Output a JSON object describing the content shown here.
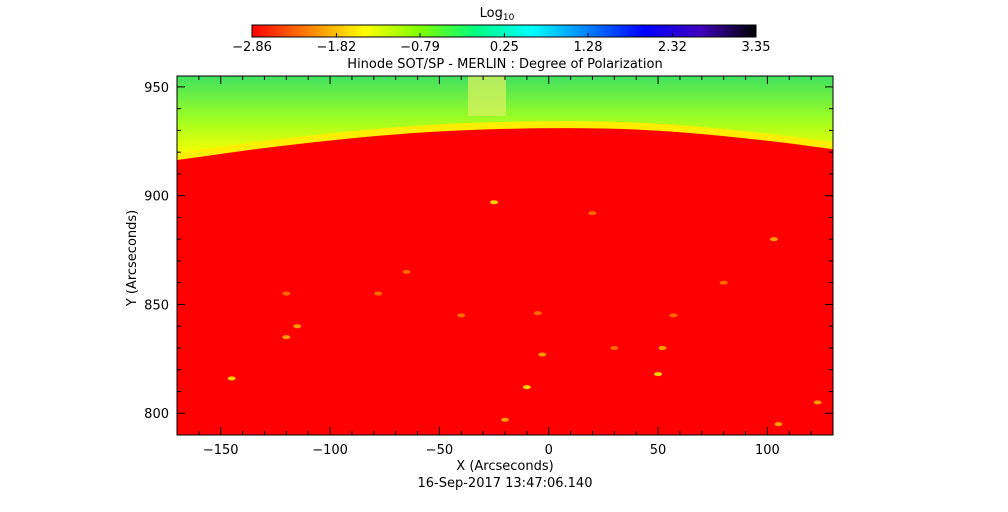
{
  "chart_data": {
    "type": "heatmap",
    "title": "Hinode SOT/SP - MERLIN : Degree of Polarization",
    "xlabel": "X (Arcseconds)",
    "ylabel": "Y (Arcseconds)",
    "xlim": [
      -170,
      130
    ],
    "ylim": [
      790,
      955
    ],
    "x_ticks": [
      -150,
      -100,
      -50,
      0,
      50,
      100
    ],
    "y_ticks": [
      800,
      850,
      900,
      950
    ],
    "x_tick_labels": [
      "−150",
      "−100",
      "−50",
      "0",
      "50",
      "100"
    ],
    "y_tick_labels": [
      "800",
      "850",
      "900",
      "950"
    ],
    "colorbar": {
      "label_base": "Log",
      "label_sub": "10",
      "range": [
        -2.86,
        3.35
      ],
      "tick_values": [
        -2.86,
        -1.82,
        -0.79,
        0.25,
        1.28,
        2.32,
        3.35
      ],
      "tick_labels": [
        "−2.86",
        "−1.82",
        "−0.79",
        "0.25",
        "1.28",
        "2.32",
        "3.35"
      ],
      "colors": [
        "#ff0000",
        "#ff8000",
        "#ffff00",
        "#80ff00",
        "#00ff80",
        "#00ffff",
        "#0080ff",
        "#0000ff",
        "#4000c0",
        "#000000"
      ]
    },
    "limb_edge": [
      {
        "x": -170,
        "y": 918
      },
      {
        "x": -120,
        "y": 925
      },
      {
        "x": -60,
        "y": 931
      },
      {
        "x": 0,
        "y": 933
      },
      {
        "x": 50,
        "y": 932
      },
      {
        "x": 100,
        "y": 927
      },
      {
        "x": 130,
        "y": 923
      }
    ],
    "bright_patches": [
      {
        "x": -25,
        "y": 897,
        "value": -1.8
      },
      {
        "x": -145,
        "y": 816,
        "value": -1.9
      },
      {
        "x": -115,
        "y": 840,
        "value": -2.0
      },
      {
        "x": -120,
        "y": 835,
        "value": -2.0
      },
      {
        "x": -5,
        "y": 846,
        "value": -2.1
      },
      {
        "x": -3,
        "y": 827,
        "value": -2.0
      },
      {
        "x": -10,
        "y": 812,
        "value": -1.9
      },
      {
        "x": 50,
        "y": 818,
        "value": -1.9
      },
      {
        "x": 52,
        "y": 830,
        "value": -2.0
      },
      {
        "x": 57,
        "y": 845,
        "value": -2.1
      },
      {
        "x": -20,
        "y": 797,
        "value": -2.0
      },
      {
        "x": -120,
        "y": 855,
        "value": -2.1
      },
      {
        "x": 103,
        "y": 880,
        "value": -2.0
      },
      {
        "x": 123,
        "y": 805,
        "value": -2.0
      },
      {
        "x": 105,
        "y": 795,
        "value": -2.0
      },
      {
        "x": -65,
        "y": 865,
        "value": -2.2
      },
      {
        "x": -78,
        "y": 855,
        "value": -2.1
      },
      {
        "x": 20,
        "y": 892,
        "value": -2.2
      },
      {
        "x": -40,
        "y": 845,
        "value": -2.1
      },
      {
        "x": 80,
        "y": 860,
        "value": -2.2
      },
      {
        "x": 30,
        "y": 830,
        "value": -2.1
      }
    ]
  },
  "footer": {
    "timestamp": "16-Sep-2017 13:47:06.140"
  }
}
